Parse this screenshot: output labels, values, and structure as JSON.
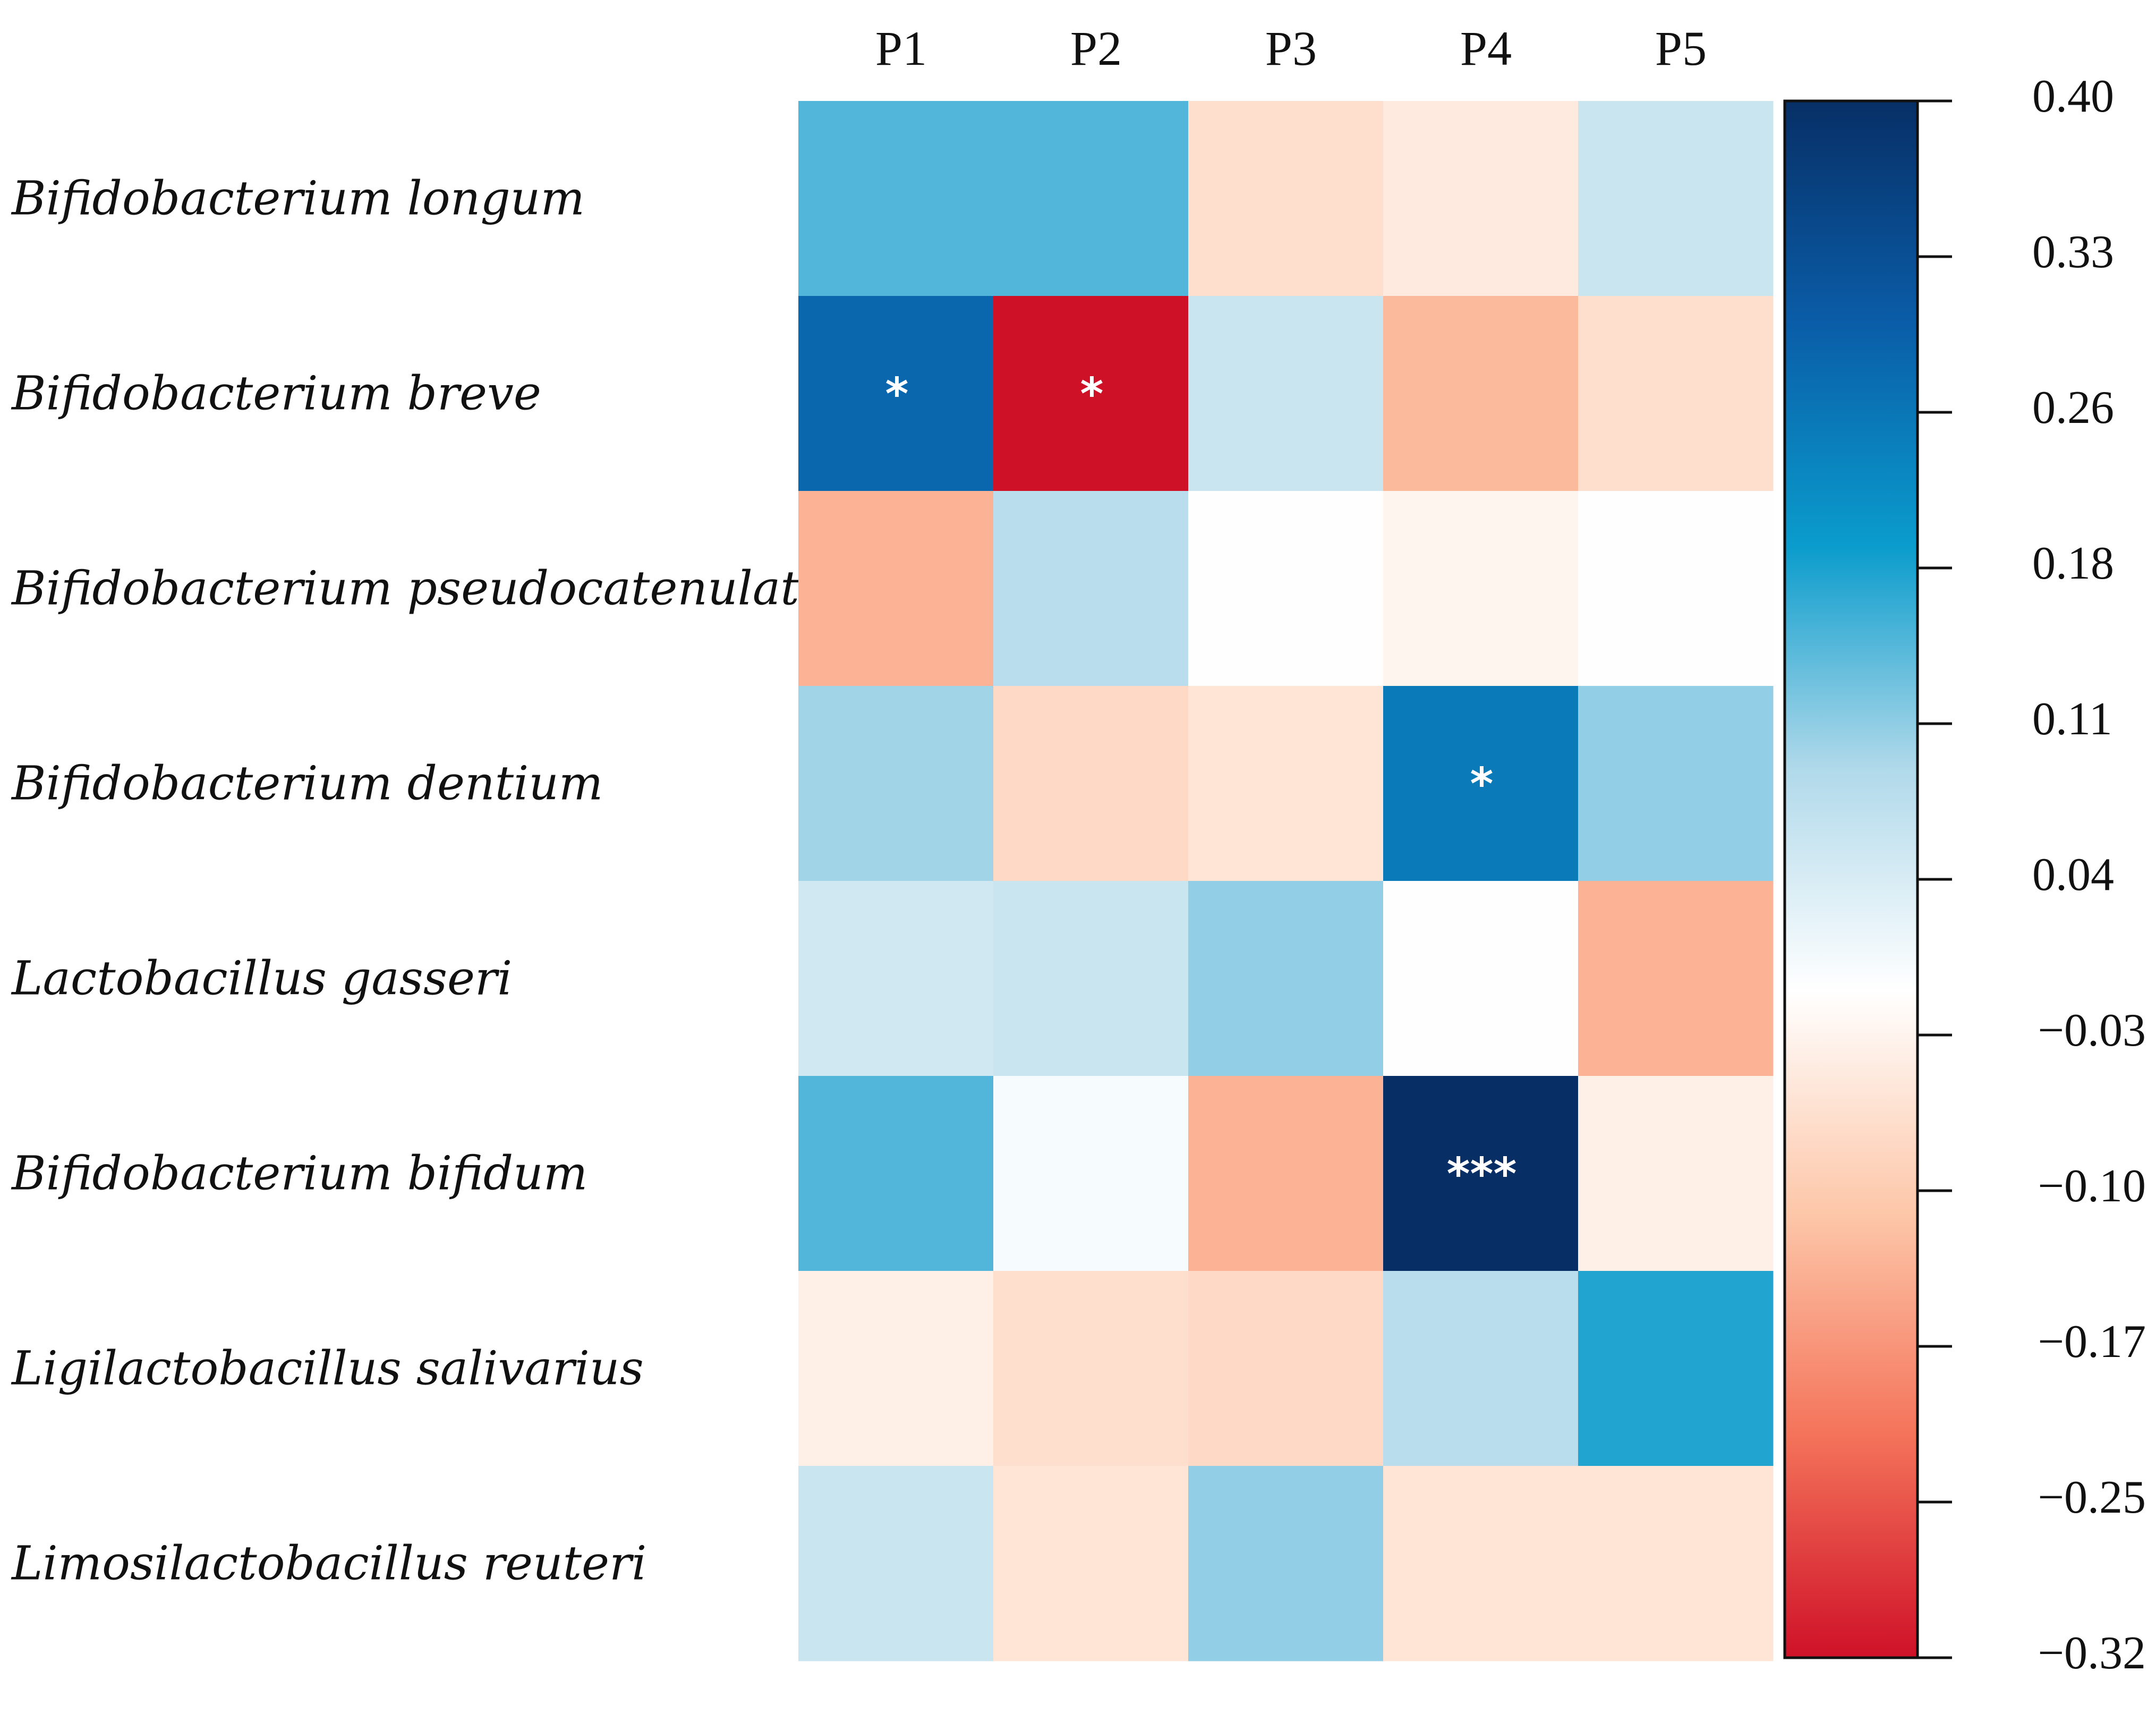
{
  "chart_data": {
    "type": "heatmap",
    "columns": [
      "P1",
      "P2",
      "P3",
      "P4",
      "P5"
    ],
    "rows": [
      "Bifidobacterium longum",
      "Bifidobacterium breve",
      "Bifidobacterium pseudocatenulatum",
      "Bifidobacterium dentium",
      "Lactobacillus gasseri",
      "Bifidobacterium bifidum",
      "Ligilactobacillus salivarius",
      "Limosilactobacillus reuteri"
    ],
    "values": [
      [
        0.15,
        0.15,
        -0.07,
        -0.05,
        0.06
      ],
      [
        0.28,
        -0.32,
        0.06,
        -0.13,
        -0.07
      ],
      [
        -0.14,
        0.08,
        -0.01,
        -0.03,
        -0.01
      ],
      [
        0.1,
        -0.08,
        -0.06,
        0.25,
        0.11
      ],
      [
        0.05,
        0.06,
        0.11,
        -0.01,
        -0.14
      ],
      [
        0.15,
        0.0,
        -0.14,
        0.4,
        -0.04
      ],
      [
        -0.04,
        -0.07,
        -0.08,
        0.08,
        0.18
      ],
      [
        0.06,
        -0.06,
        0.11,
        -0.06,
        -0.06
      ]
    ],
    "significance": [
      [
        "",
        "",
        "",
        "",
        ""
      ],
      [
        "*",
        "*",
        "",
        "",
        ""
      ],
      [
        "",
        "",
        "",
        "",
        ""
      ],
      [
        "",
        "",
        "",
        "*",
        ""
      ],
      [
        "",
        "",
        "",
        "",
        ""
      ],
      [
        "",
        "",
        "",
        "***",
        ""
      ],
      [
        "",
        "",
        "",
        "",
        ""
      ],
      [
        "",
        "",
        "",
        "",
        ""
      ]
    ],
    "colorbar": {
      "min": -0.32,
      "max": 0.4,
      "ticks": [
        "0.40",
        "0.33",
        "0.26",
        "0.18",
        "0.11",
        "0.04",
        "−0.03",
        "−0.10",
        "−0.17",
        "−0.25",
        "−0.32"
      ]
    },
    "colormap_stops": [
      "#cf1128",
      "#f4735a",
      "#fdc7a9",
      "#ffffff",
      "#b0d9ea",
      "#0a9ccc",
      "#0a5da8",
      "#072f66"
    ]
  }
}
